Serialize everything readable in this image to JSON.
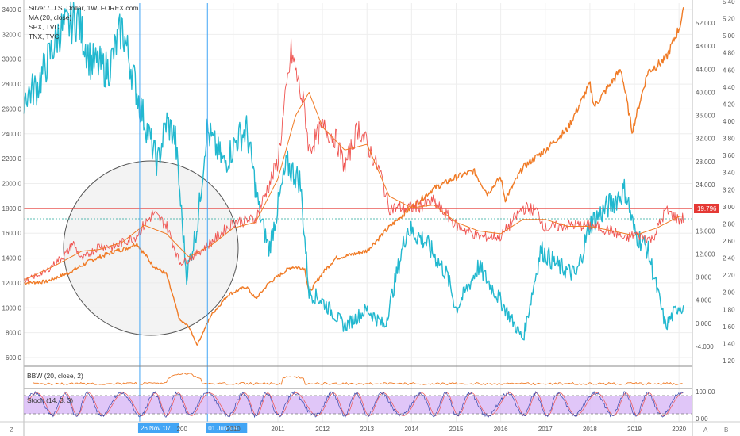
{
  "chart_data": {
    "type": "line",
    "title": "Silver / U.S. Dollar, 1W, FOREX.com",
    "indicators": [
      "MA (20, close)",
      "SPX, TVC",
      "TNX, TVC"
    ],
    "left_axis_ticks": [
      3400,
      3200,
      3000,
      2800,
      2600,
      2400,
      2200,
      2000,
      1800,
      1600,
      1400,
      1200,
      1000,
      800,
      600
    ],
    "left_axis_labels": [
      "3400.0",
      "3200.0",
      "3000.0",
      "2800.0",
      "2600.0",
      "2400.0",
      "2200.0",
      "2000.0",
      "1800.0",
      "1600.0",
      "1400.0",
      "1200.0",
      "1000.0",
      "800.0",
      "600.0"
    ],
    "mid_axis_ticks": [
      52,
      48,
      44,
      40,
      36,
      32,
      28,
      24,
      20,
      16,
      12,
      8,
      4,
      0,
      -4
    ],
    "mid_axis_labels": [
      "52.000",
      "48.000",
      "44.000",
      "40.000",
      "36.000",
      "32.000",
      "28.000",
      "24.000",
      "20.000",
      "16.000",
      "12.000",
      "8.000",
      "4.000",
      "0.000",
      "-4.000"
    ],
    "right_axis_ticks": [
      5.4,
      5.2,
      5.0,
      4.8,
      4.6,
      4.4,
      4.2,
      4.0,
      3.8,
      3.6,
      3.4,
      3.2,
      3.0,
      2.8,
      2.6,
      2.4,
      2.2,
      2.0,
      1.8,
      1.6,
      1.4,
      1.2
    ],
    "right_axis_labels": [
      "5.40",
      "5.20",
      "5.00",
      "4.80",
      "4.60",
      "4.40",
      "4.20",
      "4.00",
      "3.80",
      "3.60",
      "3.40",
      "3.20",
      "3.00",
      "2.80",
      "2.60",
      "2.40",
      "2.20",
      "2.00",
      "1.80",
      "1.60",
      "1.40",
      "1.20"
    ],
    "x_tick_labels": [
      "2010",
      "2011",
      "2012",
      "2013",
      "2014",
      "2015",
      "2016",
      "2017",
      "2018",
      "2019",
      "2020"
    ],
    "x_partial_label": "200",
    "x_markers": [
      "26 Nov '07",
      "01 Jun '09"
    ],
    "price_label": "19.796",
    "x_range": [
      2005.3,
      2020.3
    ],
    "series": [
      {
        "name": "SPX, TVC",
        "color": "#f07b26",
        "x": [
          2005.3,
          2005.8,
          2006.3,
          2006.8,
          2007.3,
          2007.6,
          2007.83,
          2008.2,
          2008.5,
          2008.8,
          2009.0,
          2009.19,
          2009.5,
          2009.9,
          2010.3,
          2010.5,
          2010.8,
          2011.3,
          2011.6,
          2011.7,
          2012.0,
          2012.3,
          2012.8,
          2013.0,
          2013.5,
          2014.0,
          2014.5,
          2015.0,
          2015.4,
          2015.7,
          2016.0,
          2016.1,
          2016.5,
          2017.0,
          2017.5,
          2018.0,
          2018.1,
          2018.7,
          2018.95,
          2019.3,
          2019.7,
          2020.0,
          2020.1
        ],
        "values": [
          1200,
          1210,
          1280,
          1380,
          1450,
          1480,
          1520,
          1340,
          1270,
          900,
          850,
          700,
          940,
          1110,
          1170,
          1070,
          1200,
          1330,
          1320,
          1120,
          1280,
          1400,
          1440,
          1460,
          1650,
          1810,
          1960,
          2050,
          2100,
          1920,
          2050,
          1870,
          2130,
          2270,
          2440,
          2800,
          2620,
          2920,
          2420,
          2900,
          3000,
          3250,
          3380
        ],
        "axis": "left"
      },
      {
        "name": "TNX, TVC",
        "color": "#22b8cf",
        "x": [
          2005.3,
          2005.6,
          2006.1,
          2006.5,
          2006.8,
          2007.2,
          2007.5,
          2007.9,
          2008.3,
          2008.5,
          2008.7,
          2008.95,
          2009.2,
          2009.4,
          2009.8,
          2010.1,
          2010.3,
          2010.6,
          2010.8,
          2011.2,
          2011.5,
          2011.7,
          2012.0,
          2012.5,
          2013.0,
          2013.4,
          2013.9,
          2014.3,
          2014.8,
          2015.0,
          2015.5,
          2016.0,
          2016.5,
          2016.9,
          2017.3,
          2017.7,
          2018.0,
          2018.8,
          2019.0,
          2019.3,
          2019.7,
          2020.0,
          2020.1
        ],
        "values": [
          4.3,
          4.4,
          5.05,
          5.2,
          4.7,
          4.6,
          5.1,
          4.2,
          3.5,
          4.0,
          3.8,
          2.2,
          2.8,
          3.9,
          3.5,
          3.8,
          3.9,
          2.9,
          2.5,
          3.5,
          3.3,
          2.0,
          1.9,
          1.6,
          1.8,
          1.6,
          2.75,
          2.6,
          2.2,
          1.8,
          2.3,
          1.9,
          1.45,
          2.5,
          2.3,
          2.2,
          2.8,
          3.2,
          2.7,
          2.5,
          1.6,
          1.85,
          1.82
        ],
        "axis": "right"
      },
      {
        "name": "Silver / U.S. Dollar",
        "color": "#ef5350",
        "x": [
          2005.3,
          2005.8,
          2006.3,
          2006.4,
          2006.6,
          2007.0,
          2007.3,
          2007.8,
          2008.2,
          2008.5,
          2008.8,
          2009.0,
          2009.5,
          2010.0,
          2010.5,
          2010.8,
          2011.0,
          2011.3,
          2011.6,
          2011.7,
          2012.0,
          2012.3,
          2012.5,
          2012.8,
          2013.0,
          2013.3,
          2013.5,
          2014.0,
          2014.5,
          2015.0,
          2015.5,
          2016.0,
          2016.5,
          2016.8,
          2017.0,
          2017.5,
          2018.0,
          2018.5,
          2018.8,
          2019.0,
          2019.4,
          2019.7,
          2020.0,
          2020.1
        ],
        "values": [
          7.3,
          9.0,
          12.5,
          14.0,
          11.0,
          13.5,
          13.2,
          15.0,
          19.0,
          17.0,
          10.5,
          11.0,
          14.0,
          17.5,
          18.0,
          24.0,
          28.0,
          47.0,
          37.0,
          30.0,
          34.0,
          32.0,
          27.0,
          34.0,
          31.0,
          26.0,
          20.0,
          20.0,
          21.0,
          17.0,
          15.0,
          15.0,
          20.0,
          19.5,
          16.5,
          17.0,
          17.0,
          16.0,
          14.5,
          15.5,
          14.5,
          19.5,
          18.0,
          18.2
        ],
        "axis": "mid"
      },
      {
        "name": "MA (20, close)",
        "color": "#f07b26",
        "x": [
          2005.3,
          2006.0,
          2006.6,
          2007.0,
          2007.5,
          2008.0,
          2008.5,
          2009.0,
          2009.5,
          2010.0,
          2010.5,
          2011.0,
          2011.4,
          2011.7,
          2012.0,
          2012.5,
          2013.0,
          2013.5,
          2014.0,
          2014.5,
          2015.0,
          2015.5,
          2016.0,
          2016.5,
          2017.0,
          2017.5,
          2018.0,
          2018.5,
          2019.0,
          2019.5,
          2020.0,
          2020.1
        ],
        "values": [
          7.5,
          10.0,
          12.5,
          12.8,
          14.0,
          17.0,
          15.5,
          11.5,
          13.5,
          16.5,
          17.5,
          25.0,
          36.0,
          40.0,
          34.0,
          30.0,
          31.0,
          22.0,
          20.0,
          20.5,
          17.5,
          16.0,
          15.5,
          18.0,
          18.0,
          16.8,
          16.8,
          16.0,
          15.2,
          16.5,
          18.5,
          18.6
        ],
        "axis": "mid"
      }
    ],
    "sub_panels": [
      {
        "label": "BBW (20, close, 2)",
        "series_color": "#f07b26"
      },
      {
        "label": "Stoch (14, 3, 3)",
        "series_color": "#7e57c2",
        "axis_labels": [
          "100.00",
          "0.00"
        ]
      }
    ],
    "corner_labels": [
      "Z",
      "A",
      "B"
    ]
  }
}
